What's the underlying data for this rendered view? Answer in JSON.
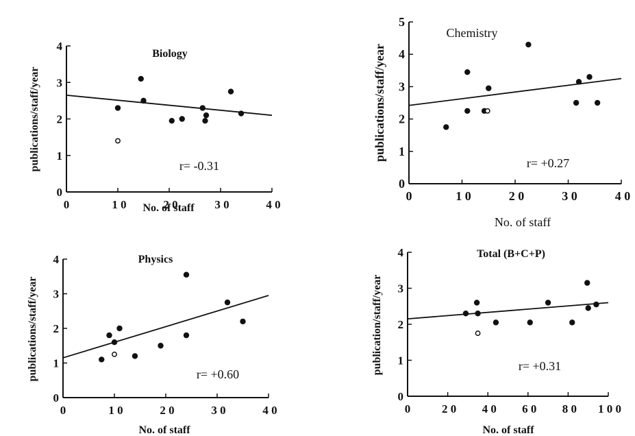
{
  "chart_data": [
    {
      "type": "scatter",
      "title": "Biology",
      "xlabel": "No. of staff",
      "ylabel": "publications/staff/year",
      "xlim": [
        0,
        40
      ],
      "ylim": [
        0,
        4
      ],
      "xticks": [
        "0",
        "1 0",
        "2 0",
        "3 0",
        "4 0"
      ],
      "yticks": [
        "0",
        "1",
        "2",
        "3",
        "4"
      ],
      "annotation": "r= -0.31",
      "points": [
        {
          "x": 10,
          "y": 2.3,
          "filled": true
        },
        {
          "x": 10,
          "y": 1.4,
          "filled": false
        },
        {
          "x": 14.5,
          "y": 3.1,
          "filled": true
        },
        {
          "x": 15,
          "y": 2.5,
          "filled": true
        },
        {
          "x": 20.5,
          "y": 1.95,
          "filled": true
        },
        {
          "x": 22.5,
          "y": 2.0,
          "filled": true
        },
        {
          "x": 26.5,
          "y": 2.3,
          "filled": true
        },
        {
          "x": 27,
          "y": 1.95,
          "filled": true
        },
        {
          "x": 27.2,
          "y": 2.1,
          "filled": true
        },
        {
          "x": 32,
          "y": 2.75,
          "filled": true
        },
        {
          "x": 34,
          "y": 2.15,
          "filled": true
        }
      ],
      "fit_line": {
        "x": [
          0,
          40
        ],
        "y": [
          2.65,
          2.1
        ]
      },
      "grid": false
    },
    {
      "type": "scatter",
      "title": "Chemistry",
      "xlabel": "No. of staff",
      "ylabel": "publications/staff/year",
      "xlim": [
        0,
        40
      ],
      "ylim": [
        0,
        5
      ],
      "xticks": [
        "0",
        "1 0",
        "2 0",
        "3 0",
        "4 0"
      ],
      "yticks": [
        "0",
        "1",
        "2",
        "3",
        "4",
        "5"
      ],
      "annotation": "r= +0.27",
      "points": [
        {
          "x": 7,
          "y": 1.75,
          "filled": true
        },
        {
          "x": 11,
          "y": 3.45,
          "filled": true
        },
        {
          "x": 11,
          "y": 2.25,
          "filled": true
        },
        {
          "x": 14.2,
          "y": 2.25,
          "filled": true
        },
        {
          "x": 14.8,
          "y": 2.25,
          "filled": false
        },
        {
          "x": 15,
          "y": 2.95,
          "filled": true
        },
        {
          "x": 22.5,
          "y": 4.3,
          "filled": true
        },
        {
          "x": 31.5,
          "y": 2.5,
          "filled": true
        },
        {
          "x": 32,
          "y": 3.15,
          "filled": true
        },
        {
          "x": 34,
          "y": 3.3,
          "filled": true
        },
        {
          "x": 35.5,
          "y": 2.5,
          "filled": true
        }
      ],
      "fit_line": {
        "x": [
          0,
          40
        ],
        "y": [
          2.42,
          3.25
        ]
      },
      "grid": false
    },
    {
      "type": "scatter",
      "title": "Physics",
      "xlabel": "No. of staff",
      "ylabel": "publications/staff/year",
      "xlim": [
        0,
        40
      ],
      "ylim": [
        0,
        4
      ],
      "xticks": [
        "0",
        "1 0",
        "2 0",
        "3 0",
        "4 0"
      ],
      "yticks": [
        "0",
        "1",
        "2",
        "3",
        "4"
      ],
      "annotation": "r= +0.60",
      "points": [
        {
          "x": 7.5,
          "y": 1.1,
          "filled": true
        },
        {
          "x": 9,
          "y": 1.8,
          "filled": true
        },
        {
          "x": 10,
          "y": 1.6,
          "filled": true
        },
        {
          "x": 10,
          "y": 1.25,
          "filled": false
        },
        {
          "x": 11,
          "y": 2.0,
          "filled": true
        },
        {
          "x": 14,
          "y": 1.2,
          "filled": true
        },
        {
          "x": 19,
          "y": 1.5,
          "filled": true
        },
        {
          "x": 24,
          "y": 3.55,
          "filled": true
        },
        {
          "x": 24,
          "y": 1.8,
          "filled": true
        },
        {
          "x": 32,
          "y": 2.75,
          "filled": true
        },
        {
          "x": 35,
          "y": 2.2,
          "filled": true
        }
      ],
      "fit_line": {
        "x": [
          0,
          40
        ],
        "y": [
          1.15,
          2.95
        ]
      },
      "grid": false
    },
    {
      "type": "scatter",
      "title": "Total (B+C+P)",
      "xlabel": "No. of staff",
      "ylabel": "publication/staff/year",
      "xlim": [
        0,
        100
      ],
      "ylim": [
        0,
        4
      ],
      "xticks": [
        "0",
        "2 0",
        "4 0",
        "6 0",
        "8 0",
        "1 0 0"
      ],
      "yticks": [
        "0",
        "1",
        "2",
        "3",
        "4"
      ],
      "annotation": "r= +0.31",
      "points": [
        {
          "x": 29,
          "y": 2.3,
          "filled": true
        },
        {
          "x": 34.5,
          "y": 2.6,
          "filled": true
        },
        {
          "x": 35,
          "y": 2.3,
          "filled": true
        },
        {
          "x": 35,
          "y": 1.75,
          "filled": false
        },
        {
          "x": 44,
          "y": 2.05,
          "filled": true
        },
        {
          "x": 61,
          "y": 2.05,
          "filled": true
        },
        {
          "x": 70,
          "y": 2.6,
          "filled": true
        },
        {
          "x": 82,
          "y": 2.05,
          "filled": true
        },
        {
          "x": 89.5,
          "y": 3.15,
          "filled": true
        },
        {
          "x": 90,
          "y": 2.45,
          "filled": true
        },
        {
          "x": 94,
          "y": 2.55,
          "filled": true
        }
      ],
      "fit_line": {
        "x": [
          0,
          100
        ],
        "y": [
          2.15,
          2.6
        ]
      },
      "grid": false
    }
  ]
}
